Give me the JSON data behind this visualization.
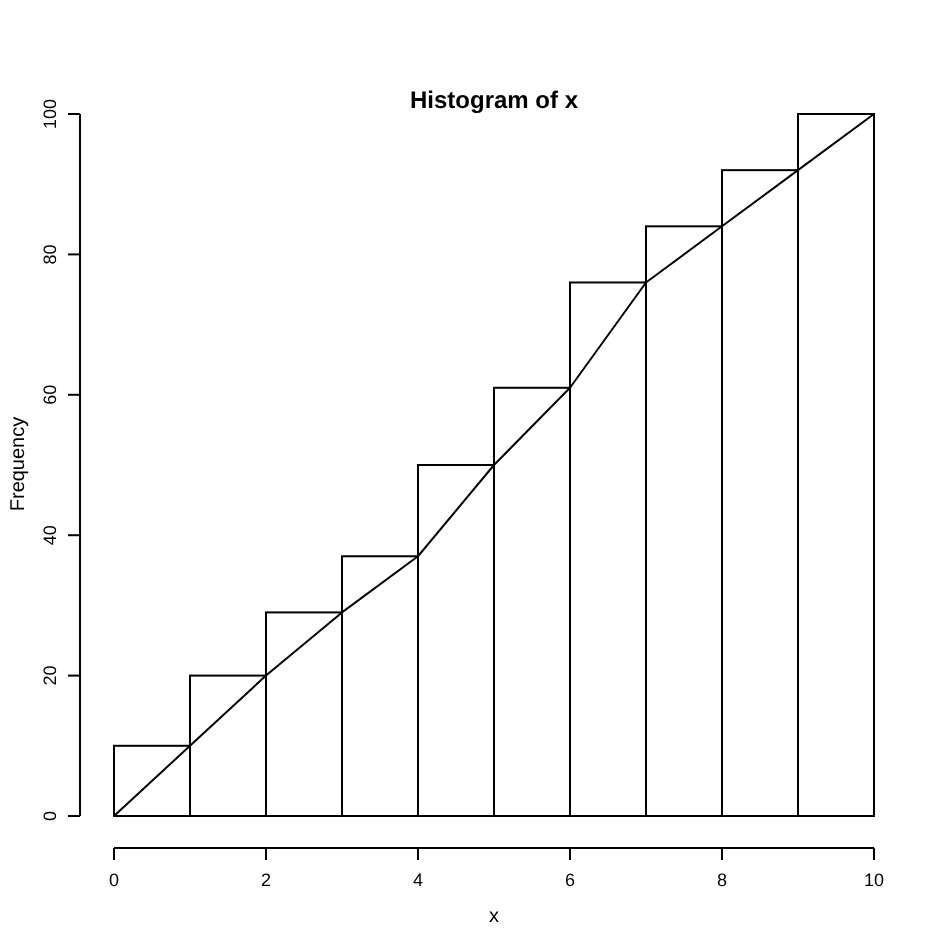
{
  "chart_data": {
    "type": "histogram",
    "title": "Histogram of x",
    "xlabel": "x",
    "ylabel": "Frequency",
    "bins": [
      0,
      1,
      2,
      3,
      4,
      5,
      6,
      7,
      8,
      9,
      10
    ],
    "series": [
      {
        "color": "#ffffff",
        "values": [
          10,
          20,
          29,
          37,
          50,
          61,
          76,
          84,
          92,
          100
        ]
      },
      {
        "type": "line",
        "color": "#000000",
        "x": [
          0,
          1,
          2,
          3,
          4,
          5,
          6,
          7,
          8,
          9,
          10
        ],
        "values": [
          0,
          10,
          20,
          29,
          37,
          50,
          61,
          76,
          84,
          92,
          100
        ]
      }
    ],
    "xlim": [
      0,
      10
    ],
    "ylim": [
      0,
      100
    ],
    "xticks": [
      0,
      2,
      4,
      6,
      8,
      10
    ],
    "yticks": [
      0,
      20,
      40,
      60,
      80,
      100
    ]
  }
}
